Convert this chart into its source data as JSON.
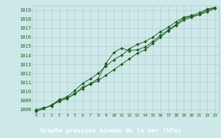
{
  "title": "Graphe pression niveau de la mer (hPa)",
  "bg_color": "#cde8e8",
  "grid_color": "#b0cccc",
  "line_color": "#1a5c1a",
  "marker_color": "#1a5c1a",
  "label_bg": "#2a6e2a",
  "label_fg": "#ffffff",
  "xlim_left": -0.5,
  "xlim_right": 23.5,
  "ylim_bottom": 1007.6,
  "ylim_top": 1019.5,
  "xticks": [
    0,
    1,
    2,
    3,
    4,
    5,
    6,
    7,
    8,
    9,
    10,
    11,
    12,
    13,
    14,
    15,
    16,
    17,
    18,
    19,
    20,
    21,
    22,
    23
  ],
  "yticks": [
    1008,
    1009,
    1010,
    1011,
    1012,
    1013,
    1014,
    1015,
    1016,
    1017,
    1018,
    1019
  ],
  "series1": [
    1008.0,
    1008.2,
    1008.4,
    1009.0,
    1009.2,
    1009.8,
    1010.3,
    1010.9,
    1011.4,
    1013.1,
    1014.3,
    1014.8,
    1014.5,
    1014.6,
    1014.9,
    1015.5,
    1016.2,
    1016.8,
    1017.4,
    1018.1,
    1018.3,
    1018.5,
    1019.0,
    1019.2
  ],
  "series2": [
    1007.8,
    1008.1,
    1008.5,
    1008.9,
    1009.3,
    1009.7,
    1010.5,
    1010.8,
    1011.2,
    1011.8,
    1012.4,
    1013.0,
    1013.6,
    1014.2,
    1014.6,
    1015.3,
    1016.0,
    1016.7,
    1017.3,
    1017.9,
    1018.2,
    1018.5,
    1018.8,
    1019.2
  ],
  "series3": [
    1007.8,
    1008.1,
    1008.5,
    1009.1,
    1009.4,
    1010.1,
    1010.9,
    1011.4,
    1012.0,
    1012.8,
    1013.5,
    1014.0,
    1014.7,
    1015.2,
    1015.5,
    1016.0,
    1016.6,
    1017.1,
    1017.7,
    1018.2,
    1018.4,
    1018.7,
    1019.1,
    1019.3
  ]
}
